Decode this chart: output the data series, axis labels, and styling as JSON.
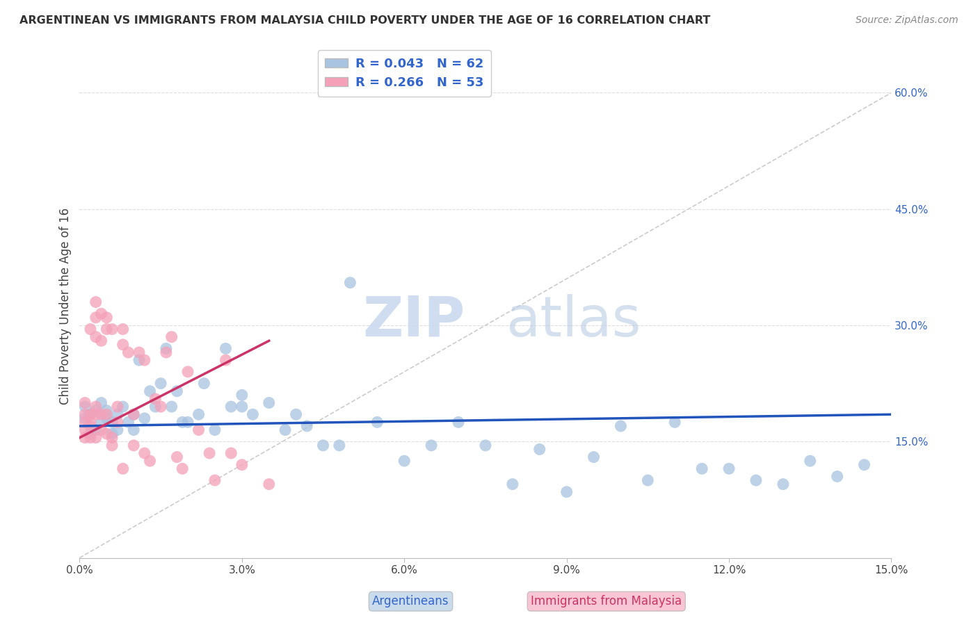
{
  "title": "ARGENTINEAN VS IMMIGRANTS FROM MALAYSIA CHILD POVERTY UNDER THE AGE OF 16 CORRELATION CHART",
  "source": "Source: ZipAtlas.com",
  "xlabel_bottom": "Argentineans",
  "xlabel_immigrants": "Immigrants from Malaysia",
  "ylabel": "Child Poverty Under the Age of 16",
  "xlim": [
    0,
    0.15
  ],
  "ylim": [
    0,
    0.65
  ],
  "xticks": [
    0.0,
    0.03,
    0.06,
    0.09,
    0.12,
    0.15
  ],
  "xticklabels": [
    "0.0%",
    "3.0%",
    "6.0%",
    "9.0%",
    "12.0%",
    "15.0%"
  ],
  "yticks_right": [
    0.15,
    0.3,
    0.45,
    0.6
  ],
  "ytick_labels_right": [
    "15.0%",
    "30.0%",
    "45.0%",
    "60.0%"
  ],
  "r_blue": 0.043,
  "n_blue": 62,
  "r_pink": 0.266,
  "n_pink": 53,
  "blue_color": "#a8c4e0",
  "pink_color": "#f4a0b8",
  "blue_line_color": "#2255bb",
  "pink_line_color": "#cc3366",
  "watermark_zip": "ZIP",
  "watermark_atlas": "atlas",
  "blue_scatter_x": [
    0.001,
    0.001,
    0.002,
    0.002,
    0.003,
    0.003,
    0.004,
    0.004,
    0.005,
    0.005,
    0.006,
    0.006,
    0.007,
    0.007,
    0.008,
    0.009,
    0.01,
    0.01,
    0.011,
    0.012,
    0.013,
    0.014,
    0.015,
    0.016,
    0.017,
    0.018,
    0.019,
    0.02,
    0.022,
    0.023,
    0.025,
    0.027,
    0.028,
    0.03,
    0.03,
    0.032,
    0.035,
    0.038,
    0.04,
    0.042,
    0.045,
    0.048,
    0.05,
    0.055,
    0.06,
    0.065,
    0.07,
    0.075,
    0.08,
    0.085,
    0.09,
    0.095,
    0.1,
    0.105,
    0.11,
    0.115,
    0.12,
    0.125,
    0.13,
    0.135,
    0.14,
    0.145
  ],
  "blue_scatter_y": [
    0.18,
    0.195,
    0.16,
    0.185,
    0.165,
    0.19,
    0.175,
    0.2,
    0.18,
    0.19,
    0.16,
    0.175,
    0.165,
    0.185,
    0.195,
    0.175,
    0.185,
    0.165,
    0.255,
    0.18,
    0.215,
    0.195,
    0.225,
    0.27,
    0.195,
    0.215,
    0.175,
    0.175,
    0.185,
    0.225,
    0.165,
    0.27,
    0.195,
    0.195,
    0.21,
    0.185,
    0.2,
    0.165,
    0.185,
    0.17,
    0.145,
    0.145,
    0.355,
    0.175,
    0.125,
    0.145,
    0.175,
    0.145,
    0.095,
    0.14,
    0.085,
    0.13,
    0.17,
    0.1,
    0.175,
    0.115,
    0.115,
    0.1,
    0.095,
    0.125,
    0.105,
    0.12
  ],
  "pink_scatter_x": [
    0.001,
    0.001,
    0.001,
    0.001,
    0.001,
    0.002,
    0.002,
    0.002,
    0.002,
    0.002,
    0.003,
    0.003,
    0.003,
    0.003,
    0.003,
    0.003,
    0.004,
    0.004,
    0.004,
    0.004,
    0.005,
    0.005,
    0.005,
    0.005,
    0.006,
    0.006,
    0.006,
    0.007,
    0.007,
    0.008,
    0.008,
    0.008,
    0.009,
    0.01,
    0.01,
    0.011,
    0.012,
    0.012,
    0.013,
    0.014,
    0.015,
    0.016,
    0.017,
    0.018,
    0.019,
    0.02,
    0.022,
    0.024,
    0.025,
    0.027,
    0.028,
    0.03,
    0.035
  ],
  "pink_scatter_y": [
    0.185,
    0.2,
    0.165,
    0.175,
    0.155,
    0.175,
    0.295,
    0.155,
    0.185,
    0.17,
    0.155,
    0.33,
    0.185,
    0.31,
    0.195,
    0.285,
    0.165,
    0.315,
    0.185,
    0.28,
    0.295,
    0.16,
    0.31,
    0.185,
    0.295,
    0.155,
    0.145,
    0.175,
    0.195,
    0.295,
    0.115,
    0.275,
    0.265,
    0.185,
    0.145,
    0.265,
    0.135,
    0.255,
    0.125,
    0.205,
    0.195,
    0.265,
    0.285,
    0.13,
    0.115,
    0.24,
    0.165,
    0.135,
    0.1,
    0.255,
    0.135,
    0.12,
    0.095
  ],
  "blue_trend_x": [
    0.0,
    0.15
  ],
  "blue_trend_y": [
    0.17,
    0.185
  ],
  "pink_trend_x": [
    0.0,
    0.035
  ],
  "pink_trend_y": [
    0.155,
    0.28
  ]
}
